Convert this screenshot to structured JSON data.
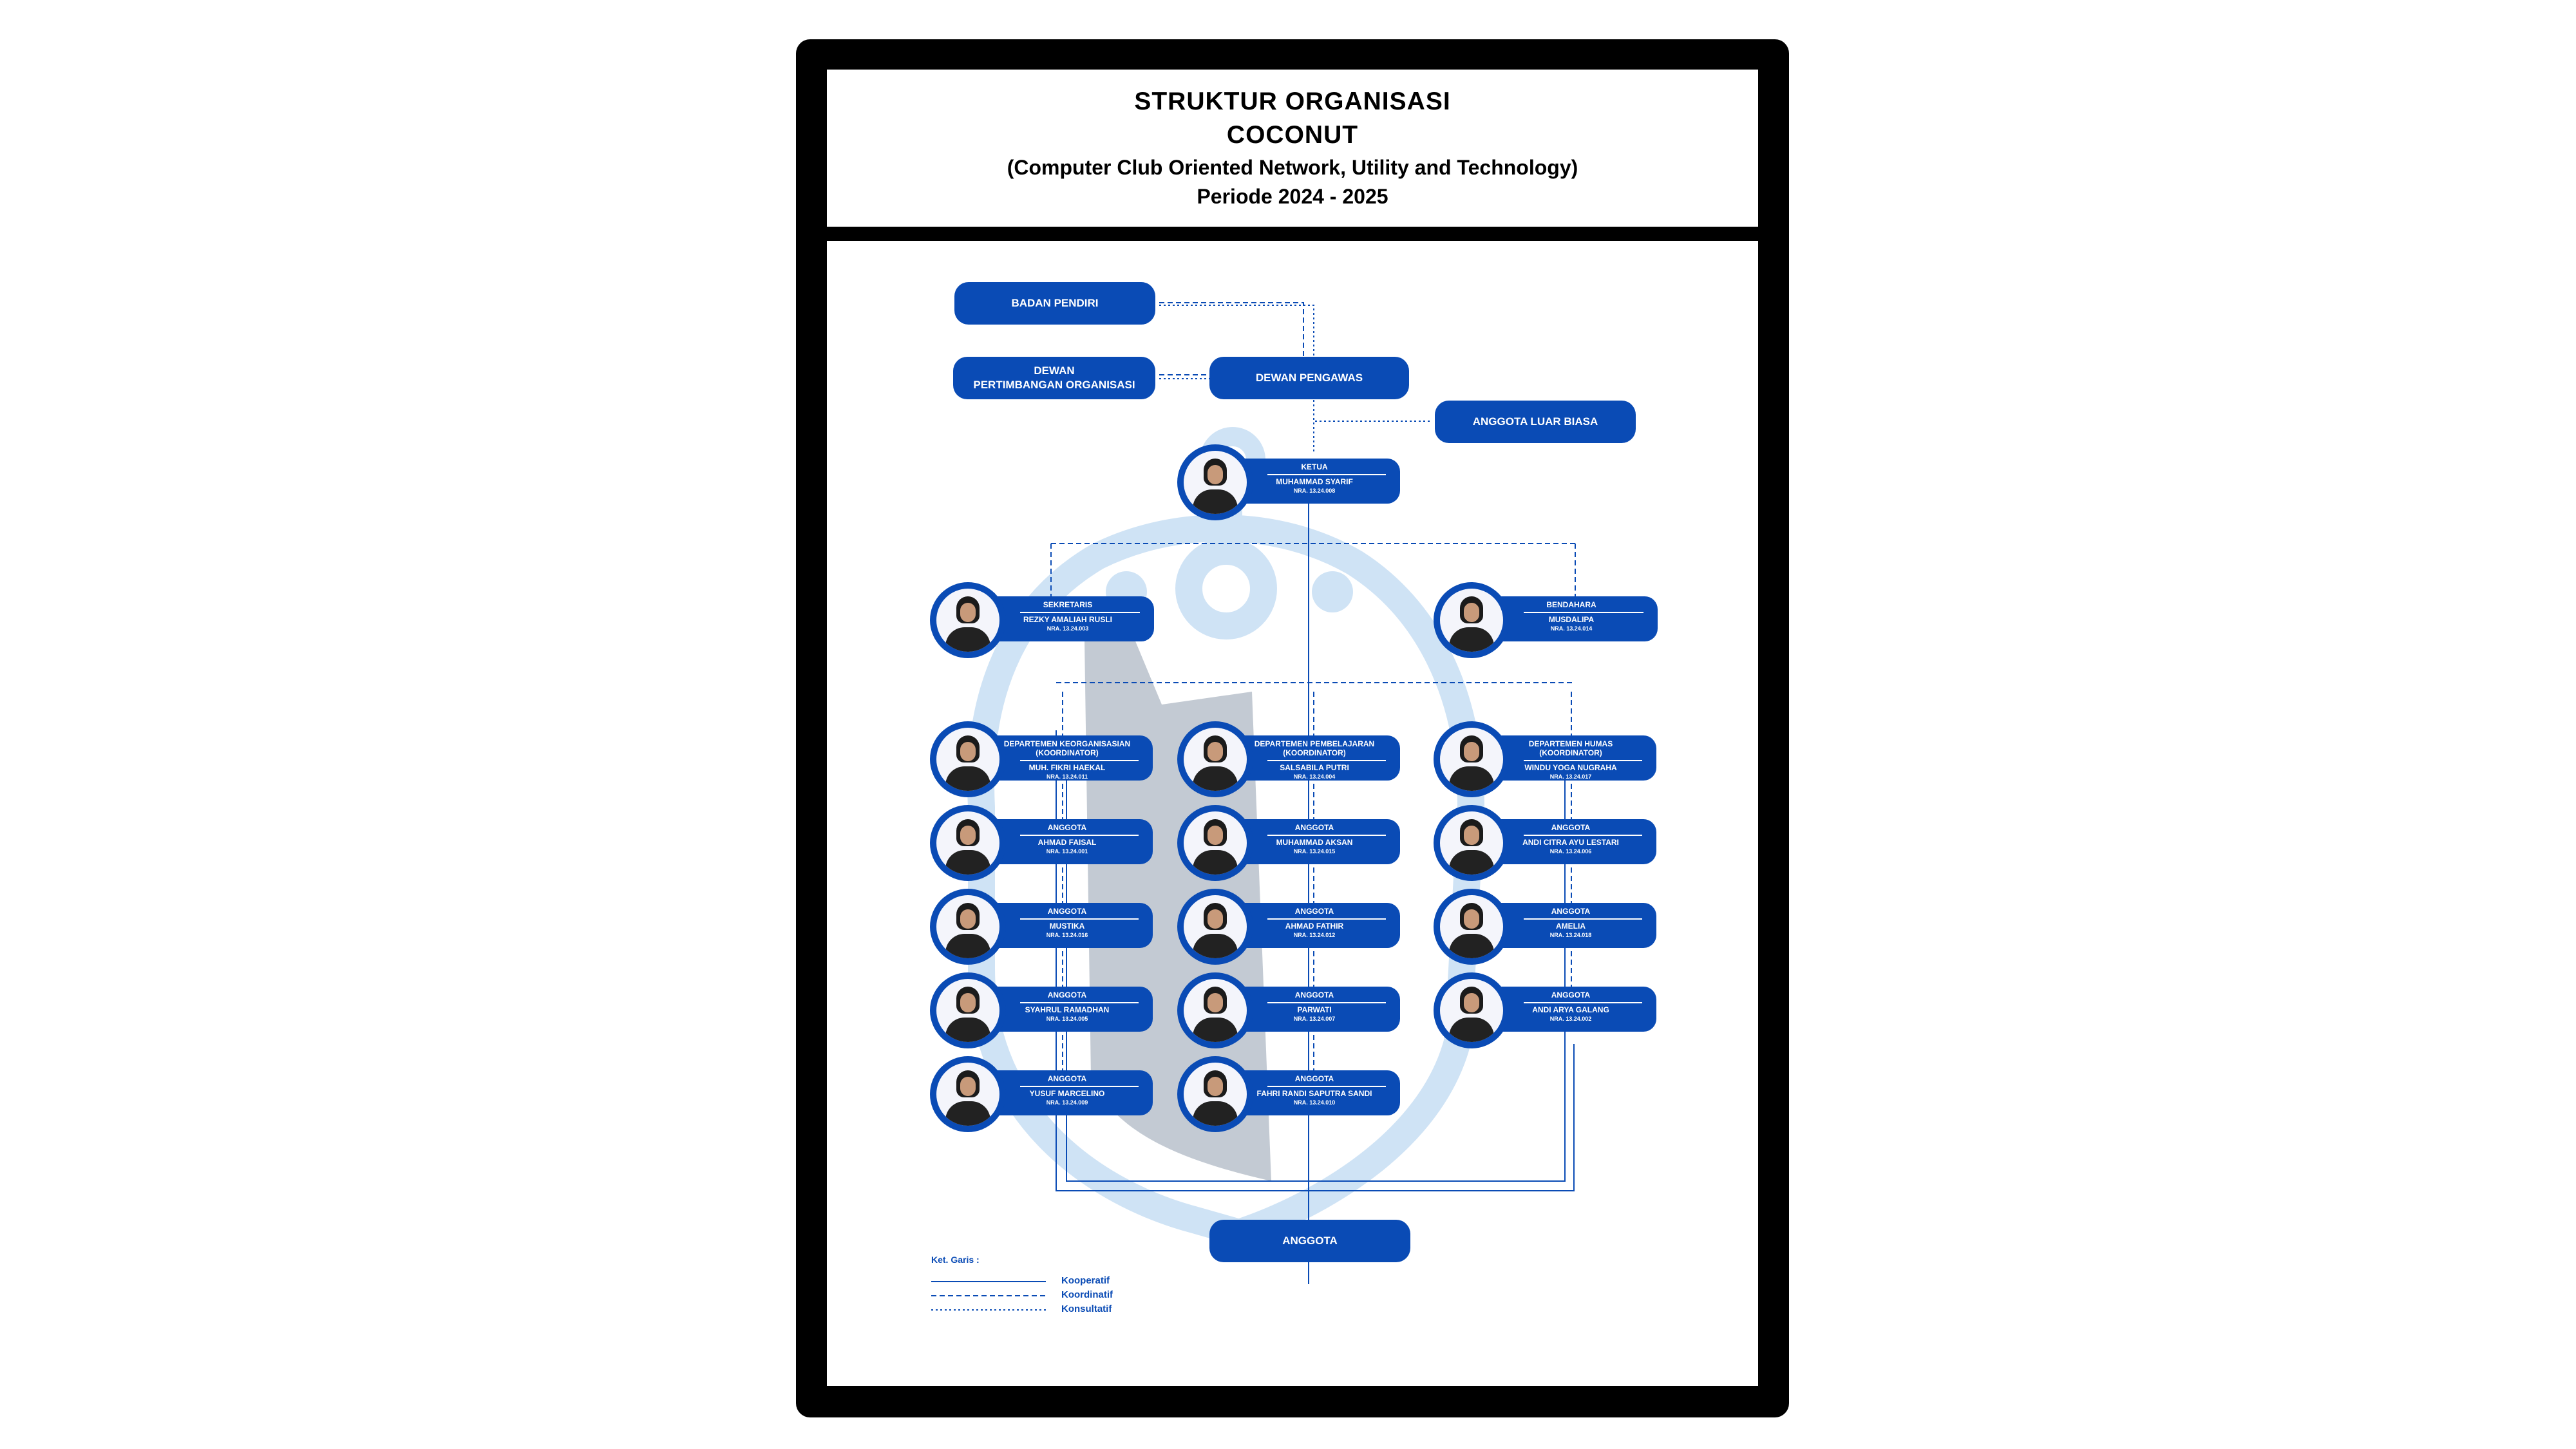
{
  "header": {
    "line1": "STRUKTUR ORGANISASI",
    "line2": "COCONUT",
    "line3": "(Computer Club Oriented Network, Utility and Technology)",
    "line4": "Periode 2024 - 2025"
  },
  "colors": {
    "primary_blue": "#0a4bb5",
    "frame": "#000000",
    "watermark": "#cfe3f5"
  },
  "boxes": {
    "badan_pendiri": "BADAN PENDIRI",
    "dewan_pertimbangan": "DEWAN\nPERTIMBANGAN  ORGANISASI",
    "dewan_pengawas": "DEWAN PENGAWAS",
    "anggota_luar_biasa": "ANGGOTA LUAR BIASA",
    "anggota": "ANGGOTA"
  },
  "ketua": {
    "role": "KETUA",
    "name": "MUHAMMAD SYARIF",
    "nra": "NRA. 13.24.008"
  },
  "sekretaris": {
    "role": "SEKRETARIS",
    "name": "REZKY AMALIAH RUSLI",
    "nra": "NRA. 13.24.003"
  },
  "bendahara": {
    "role": "BENDAHARA",
    "name": "MUSDALIPA",
    "nra": "NRA. 13.24.014"
  },
  "columns": [
    {
      "coordinator": {
        "role": "DEPARTEMEN KEORGANISASIAN\n(KOORDINATOR)",
        "name": "MUH. FIKRI HAEKAL",
        "nra": "NRA. 13.24.011"
      },
      "members": [
        {
          "role": "ANGGOTA",
          "name": "AHMAD FAISAL",
          "nra": "NRA. 13.24.001"
        },
        {
          "role": "ANGGOTA",
          "name": "MUSTIKA",
          "nra": "NRA. 13.24.016"
        },
        {
          "role": "ANGGOTA",
          "name": "SYAHRUL RAMADHAN",
          "nra": "NRA. 13.24.005"
        },
        {
          "role": "ANGGOTA",
          "name": "YUSUF MARCELINO",
          "nra": "NRA. 13.24.009"
        }
      ]
    },
    {
      "coordinator": {
        "role": "DEPARTEMEN PEMBELAJARAN\n(KOORDINATOR)",
        "name": "SALSABILA PUTRI",
        "nra": "NRA. 13.24.004"
      },
      "members": [
        {
          "role": "ANGGOTA",
          "name": "MUHAMMAD AKSAN",
          "nra": "NRA. 13.24.015"
        },
        {
          "role": "ANGGOTA",
          "name": "AHMAD FATHIR",
          "nra": "NRA. 13.24.012"
        },
        {
          "role": "ANGGOTA",
          "name": "PARWATI",
          "nra": "NRA. 13.24.007"
        },
        {
          "role": "ANGGOTA",
          "name": "FAHRI RANDI SAPUTRA SANDI",
          "nra": "NRA. 13.24.010"
        }
      ]
    },
    {
      "coordinator": {
        "role": "DEPARTEMEN HUMAS\n(KOORDINATOR)",
        "name": "WINDU YOGA NUGRAHA",
        "nra": "NRA. 13.24.017"
      },
      "members": [
        {
          "role": "ANGGOTA",
          "name": "ANDI CITRA AYU LESTARI",
          "nra": "NRA. 13.24.006"
        },
        {
          "role": "ANGGOTA",
          "name": "AMELIA",
          "nra": "NRA. 13.24.018"
        },
        {
          "role": "ANGGOTA",
          "name": "ANDI ARYA GALANG",
          "nra": "NRA. 13.24.002"
        }
      ]
    }
  ],
  "legend": {
    "title": "Ket. Garis :",
    "items": [
      "Kooperatif",
      "Koordinatif",
      "Konsultatif"
    ]
  }
}
